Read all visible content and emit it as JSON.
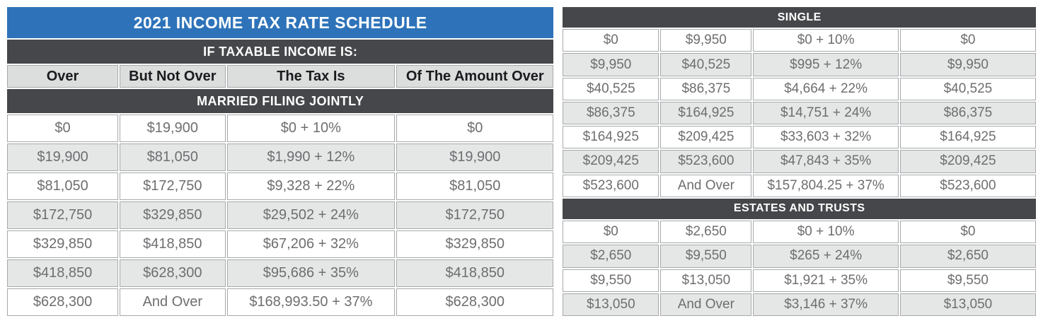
{
  "colors": {
    "title_bg": "#2e73b9",
    "band_bg": "#45474a",
    "band_text": "#ffffff",
    "col_header_bg": "#dcdddd",
    "header_text": "#1a1b1d",
    "alt_row_bg": "#e5e6e6",
    "row_bg": "#ffffff",
    "data_text": "#6d6e70",
    "border": "#a6a8ab"
  },
  "left_table": {
    "title": "2021 INCOME TAX RATE SCHEDULE",
    "banner": "IF TAXABLE INCOME IS:",
    "columns": [
      "Over",
      "But Not Over",
      "The Tax Is",
      "Of The Amount Over"
    ],
    "section": "MARRIED FILING JOINTLY",
    "rows": [
      [
        "$0",
        "$19,900",
        "$0 + 10%",
        "$0"
      ],
      [
        "$19,900",
        "$81,050",
        "$1,990 + 12%",
        "$19,900"
      ],
      [
        "$81,050",
        "$172,750",
        "$9,328 + 22%",
        "$81,050"
      ],
      [
        "$172,750",
        "$329,850",
        "$29,502 + 24%",
        "$172,750"
      ],
      [
        "$329,850",
        "$418,850",
        "$67,206 + 32%",
        "$329,850"
      ],
      [
        "$418,850",
        "$628,300",
        "$95,686 + 35%",
        "$418,850"
      ],
      [
        "$628,300",
        "And Over",
        "$168,993.50 + 37%",
        "$628,300"
      ]
    ]
  },
  "right_table": {
    "sections": [
      {
        "label": "SINGLE",
        "rows": [
          [
            "$0",
            "$9,950",
            "$0 + 10%",
            "$0"
          ],
          [
            "$9,950",
            "$40,525",
            "$995 + 12%",
            "$9,950"
          ],
          [
            "$40,525",
            "$86,375",
            "$4,664 + 22%",
            "$40,525"
          ],
          [
            "$86,375",
            "$164,925",
            "$14,751 + 24%",
            "$86,375"
          ],
          [
            "$164,925",
            "$209,425",
            "$33,603 + 32%",
            "$164,925"
          ],
          [
            "$209,425",
            "$523,600",
            "$47,843 + 35%",
            "$209,425"
          ],
          [
            "$523,600",
            "And Over",
            "$157,804.25 + 37%",
            "$523,600"
          ]
        ]
      },
      {
        "label": "ESTATES AND TRUSTS",
        "rows": [
          [
            "$0",
            "$2,650",
            "$0 + 10%",
            "$0"
          ],
          [
            "$2,650",
            "$9,550",
            "$265 + 24%",
            "$2,650"
          ],
          [
            "$9,550",
            "$13,050",
            "$1,921 + 35%",
            "$9,550"
          ],
          [
            "$13,050",
            "And Over",
            "$3,146 + 37%",
            "$13,050"
          ]
        ]
      }
    ]
  }
}
